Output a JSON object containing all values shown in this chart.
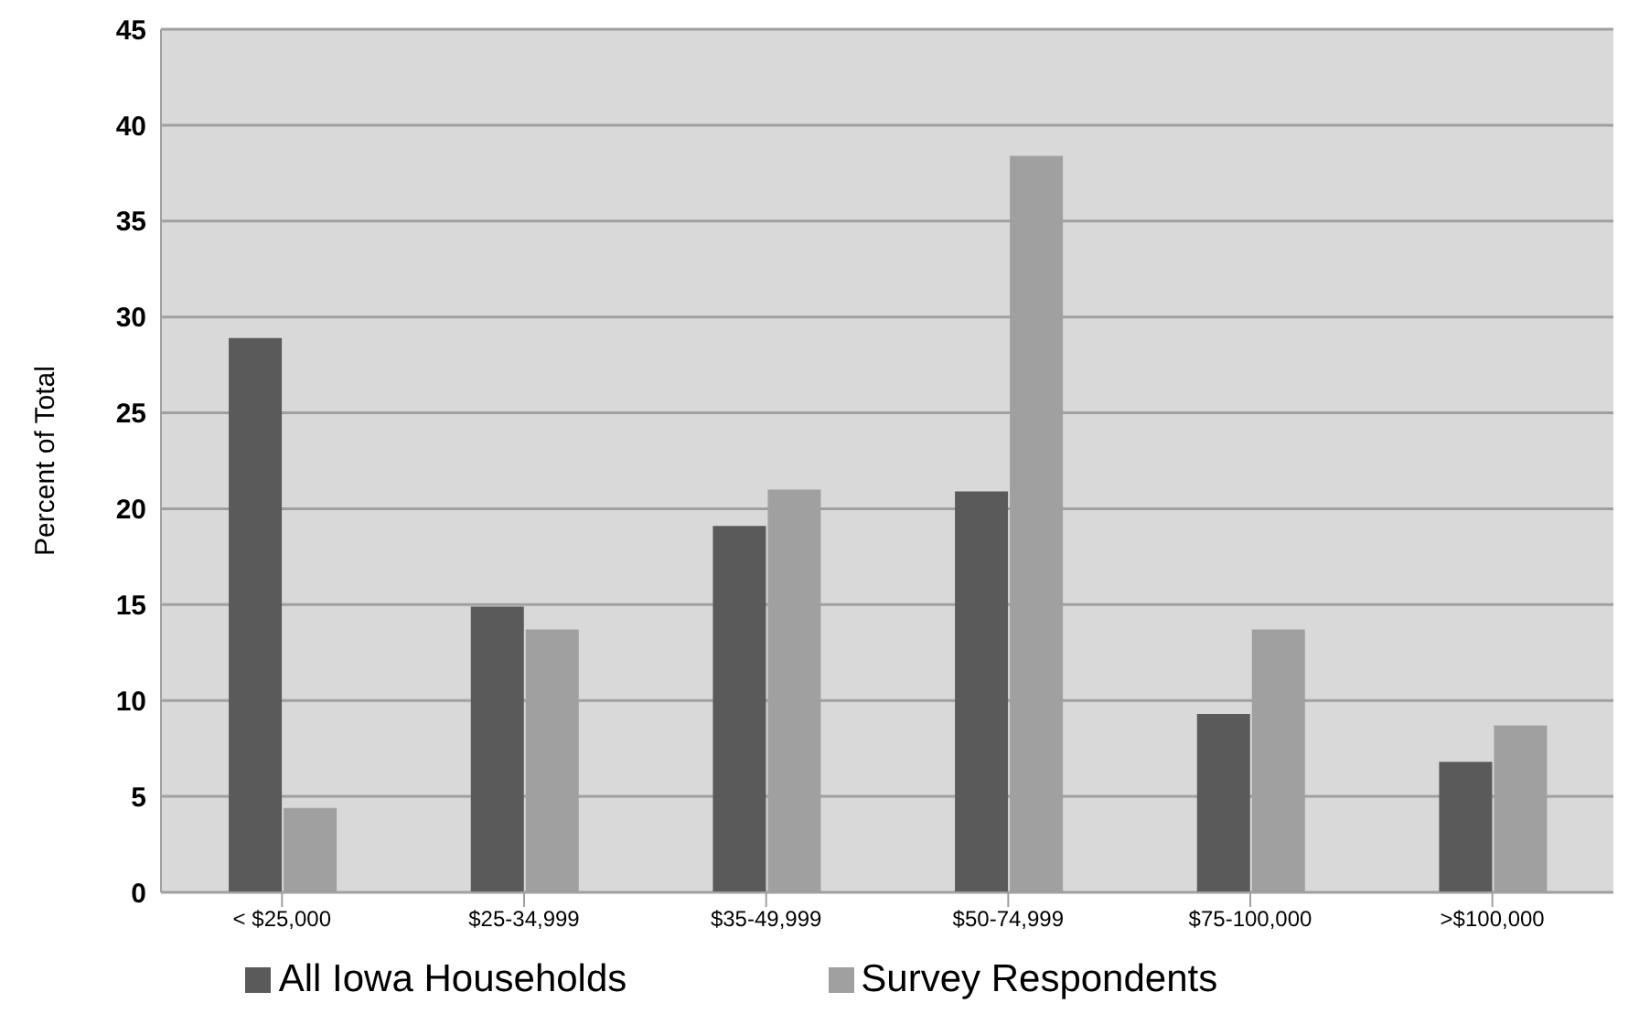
{
  "chart_data": {
    "type": "bar",
    "ylabel": "Percent of Total",
    "categories": [
      "< $25,000",
      "$25-34,999",
      "$35-49,999",
      "$50-74,999",
      "$75-100,000",
      ">$100,000"
    ],
    "series": [
      {
        "name": "All Iowa Households",
        "color": "#5a5a5a",
        "values": [
          28.9,
          14.9,
          19.1,
          20.9,
          9.3,
          6.8
        ]
      },
      {
        "name": "Survey Respondents",
        "color": "#a0a0a0",
        "values": [
          4.4,
          13.7,
          21.0,
          38.4,
          13.7,
          8.7
        ]
      }
    ],
    "ylim": [
      0,
      45
    ],
    "yticks": [
      0,
      5,
      10,
      15,
      20,
      25,
      30,
      35,
      40,
      45
    ],
    "grid": "y",
    "legend": "bottom"
  }
}
